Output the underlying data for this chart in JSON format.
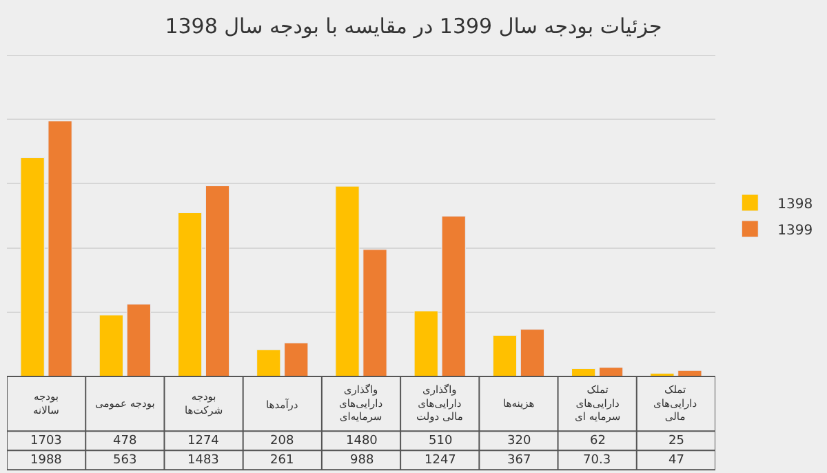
{
  "chart_data": {
    "type": "bar",
    "title": "جزئیات بودجه سال 1399 در مقایسه با بودجه سال 1398",
    "categories": [
      "بودجه سالانه",
      "بودجه عمومی",
      "بودجه شرکت‌ها",
      "درآمدها",
      "واگذاری دارایی‌های سرمایه‌ای",
      "واگذاری دارایی‌های مالی دولت",
      "هزینه‌ها",
      "تملک دارایی‌های سرمایه ای",
      "تملک دارایی‌های مالی"
    ],
    "series": [
      {
        "name": "1398",
        "color": "#ffc000",
        "values": [
          1703,
          478,
          1274,
          208,
          1480,
          510,
          320,
          62,
          25
        ]
      },
      {
        "name": "1399",
        "color": "#ed7d31",
        "values": [
          1988,
          563,
          1483,
          261,
          988,
          1247,
          367,
          70.3,
          47
        ]
      }
    ],
    "ylim": [
      0,
      2500
    ],
    "yticks": [
      {
        "value": 0,
        "label": null
      },
      {
        "value": 500,
        "label": null
      },
      {
        "value": 1000,
        "label": null
      },
      {
        "value": 1500,
        "label": null
      },
      {
        "value": 2000,
        "label": null
      }
    ],
    "grid": "y",
    "legend": "right",
    "tick_labels": "x",
    "data_labels": true
  }
}
